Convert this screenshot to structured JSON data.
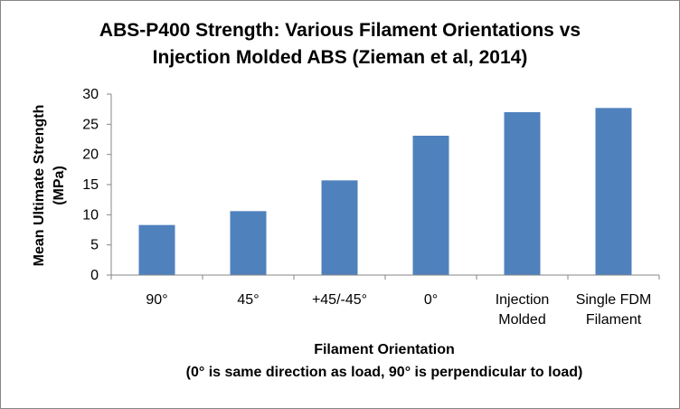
{
  "chart_data": {
    "type": "bar",
    "title": "ABS-P400 Strength: Various Filament Orientations vs Injection Molded ABS (Zieman et al, 2014)",
    "title_lines": [
      "ABS-P400 Strength: Various Filament Orientations vs",
      "Injection Molded ABS (Zieman et al, 2014)"
    ],
    "ylabel": "Mean Ultimate Strength (MPa)",
    "ylabel_lines": [
      "Mean Ultimate Strength",
      "(MPa)"
    ],
    "xlabel": "Filament Orientation (0° is same direction as load, 90° is perpendicular to load)",
    "xlabel_lines": [
      "Filament Orientation",
      "(0° is same direction as load, 90° is perpendicular to load)"
    ],
    "categories": [
      "90°",
      "45°",
      "+45/-45°",
      "0°",
      "Injection Molded",
      "Single FDM Filament"
    ],
    "category_lines": [
      [
        "90°"
      ],
      [
        "45°"
      ],
      [
        "+45/-45°"
      ],
      [
        "0°"
      ],
      [
        "Injection",
        "Molded"
      ],
      [
        "Single FDM",
        "Filament"
      ]
    ],
    "values": [
      8.3,
      10.6,
      15.7,
      23.1,
      27.0,
      27.7
    ],
    "ylim": [
      0,
      30
    ],
    "yticks": [
      0,
      5,
      10,
      15,
      20,
      25,
      30
    ],
    "grid": false,
    "legend": "none",
    "bar_color": "#4F81BD"
  }
}
